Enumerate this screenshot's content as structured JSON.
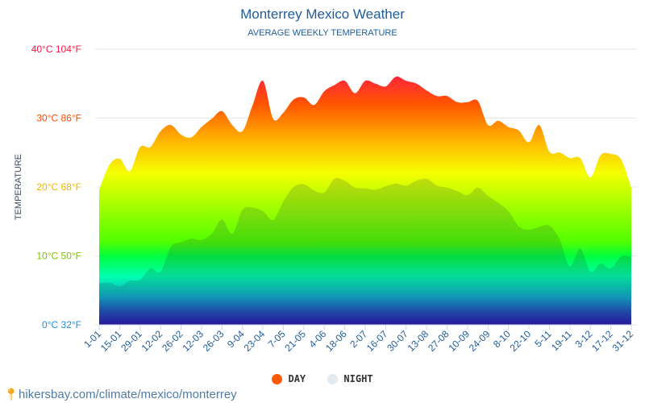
{
  "chart_data": {
    "type": "area",
    "title": "Monterrey Mexico Weather",
    "subtitle": "AVERAGE WEEKLY TEMPERATURE",
    "ylabel": "TEMPERATURE",
    "ylim": [
      0,
      40
    ],
    "yticks": [
      {
        "value": 0,
        "label": "0°C 32°F",
        "color": "#1e90d8"
      },
      {
        "value": 10,
        "label": "10°C 50°F",
        "color": "#7ec400"
      },
      {
        "value": 20,
        "label": "20°C 68°F",
        "color": "#f0b400"
      },
      {
        "value": 30,
        "label": "30°C 86°F",
        "color": "#ff4a00"
      },
      {
        "value": 40,
        "label": "40°C 104°F",
        "color": "#ff1744"
      }
    ],
    "xtick_labels": [
      "1-01",
      "15-01",
      "29-01",
      "12-02",
      "26-02",
      "12-03",
      "26-03",
      "9-04",
      "23-04",
      "7-05",
      "21-05",
      "4-06",
      "18-06",
      "2-07",
      "16-07",
      "30-07",
      "13-08",
      "27-08",
      "10-09",
      "24-09",
      "8-10",
      "22-10",
      "5-11",
      "19-11",
      "3-12",
      "17-12",
      "31-12"
    ],
    "grid": true,
    "legend_position": "bottom",
    "series": [
      {
        "name": "DAY",
        "color": "#ff5a00",
        "values": [
          19.6,
          23.2,
          24.1,
          22.3,
          25.8,
          25.8,
          28.1,
          29.0,
          27.6,
          27.2,
          28.7,
          29.9,
          31.0,
          29.0,
          28.1,
          31.9,
          35.4,
          29.9,
          30.8,
          32.7,
          33.0,
          31.9,
          33.9,
          34.8,
          35.4,
          33.6,
          35.4,
          35.0,
          34.6,
          36.0,
          35.4,
          35.0,
          34.0,
          33.2,
          33.2,
          32.3,
          32.3,
          32.5,
          29.0,
          29.6,
          28.7,
          28.2,
          26.5,
          29.0,
          25.1,
          25.0,
          24.2,
          24.2,
          21.4,
          24.6,
          24.8,
          24.0,
          19.9
        ]
      },
      {
        "name": "NIGHT",
        "color": "#e3eaf0",
        "values": [
          6.0,
          6.1,
          5.6,
          6.4,
          6.5,
          8.2,
          7.7,
          11.3,
          12.0,
          12.5,
          12.3,
          13.2,
          15.3,
          13.2,
          16.7,
          17.0,
          16.5,
          15.2,
          17.9,
          20.0,
          20.4,
          19.5,
          19.2,
          21.2,
          20.9,
          19.9,
          19.8,
          19.6,
          20.1,
          20.5,
          20.2,
          20.9,
          21.2,
          20.2,
          19.9,
          19.4,
          18.8,
          19.9,
          18.7,
          17.7,
          16.5,
          14.3,
          13.8,
          14.2,
          14.4,
          12.4,
          8.5,
          11.1,
          7.7,
          8.9,
          8.2,
          9.9,
          9.9
        ]
      }
    ]
  },
  "source": "hikersbay.com/climate/mexico/monterrey",
  "icons": {
    "source": "map-pin-icon"
  }
}
